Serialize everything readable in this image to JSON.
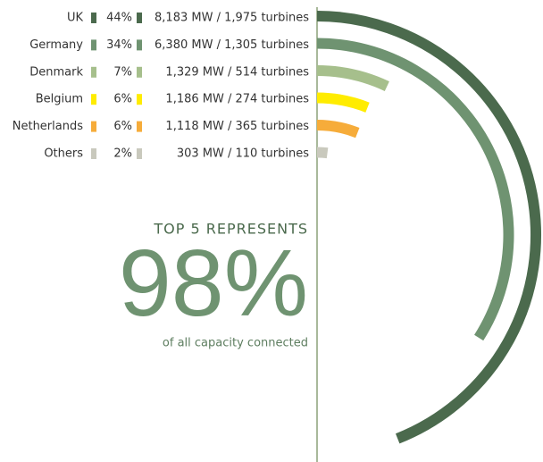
{
  "chart_data": {
    "type": "radial-bar",
    "categories": [
      "UK",
      "Germany",
      "Denmark",
      "Belgium",
      "Netherlands",
      "Others"
    ],
    "values": [
      44,
      34,
      7,
      6,
      6,
      2
    ],
    "value_labels": [
      "44%",
      "34%",
      "7%",
      "6%",
      "6%",
      "2%"
    ],
    "capacity_labels": [
      "8,183 MW / 1,975 turbines",
      "6,380 MW / 1,305 turbines",
      "1,329 MW / 514 turbines",
      "1,186 MW / 274 turbines",
      "1,118 MW / 365 turbines",
      "303 MW / 110 turbines"
    ],
    "colors": [
      "#4b6a4d",
      "#6f9371",
      "#a6bf8c",
      "#ffec00",
      "#f6ac3a",
      "#c9c9bd"
    ],
    "annotations": [
      "TOP 5 REPRESENTS",
      "98%",
      "of all capacity connected"
    ]
  }
}
